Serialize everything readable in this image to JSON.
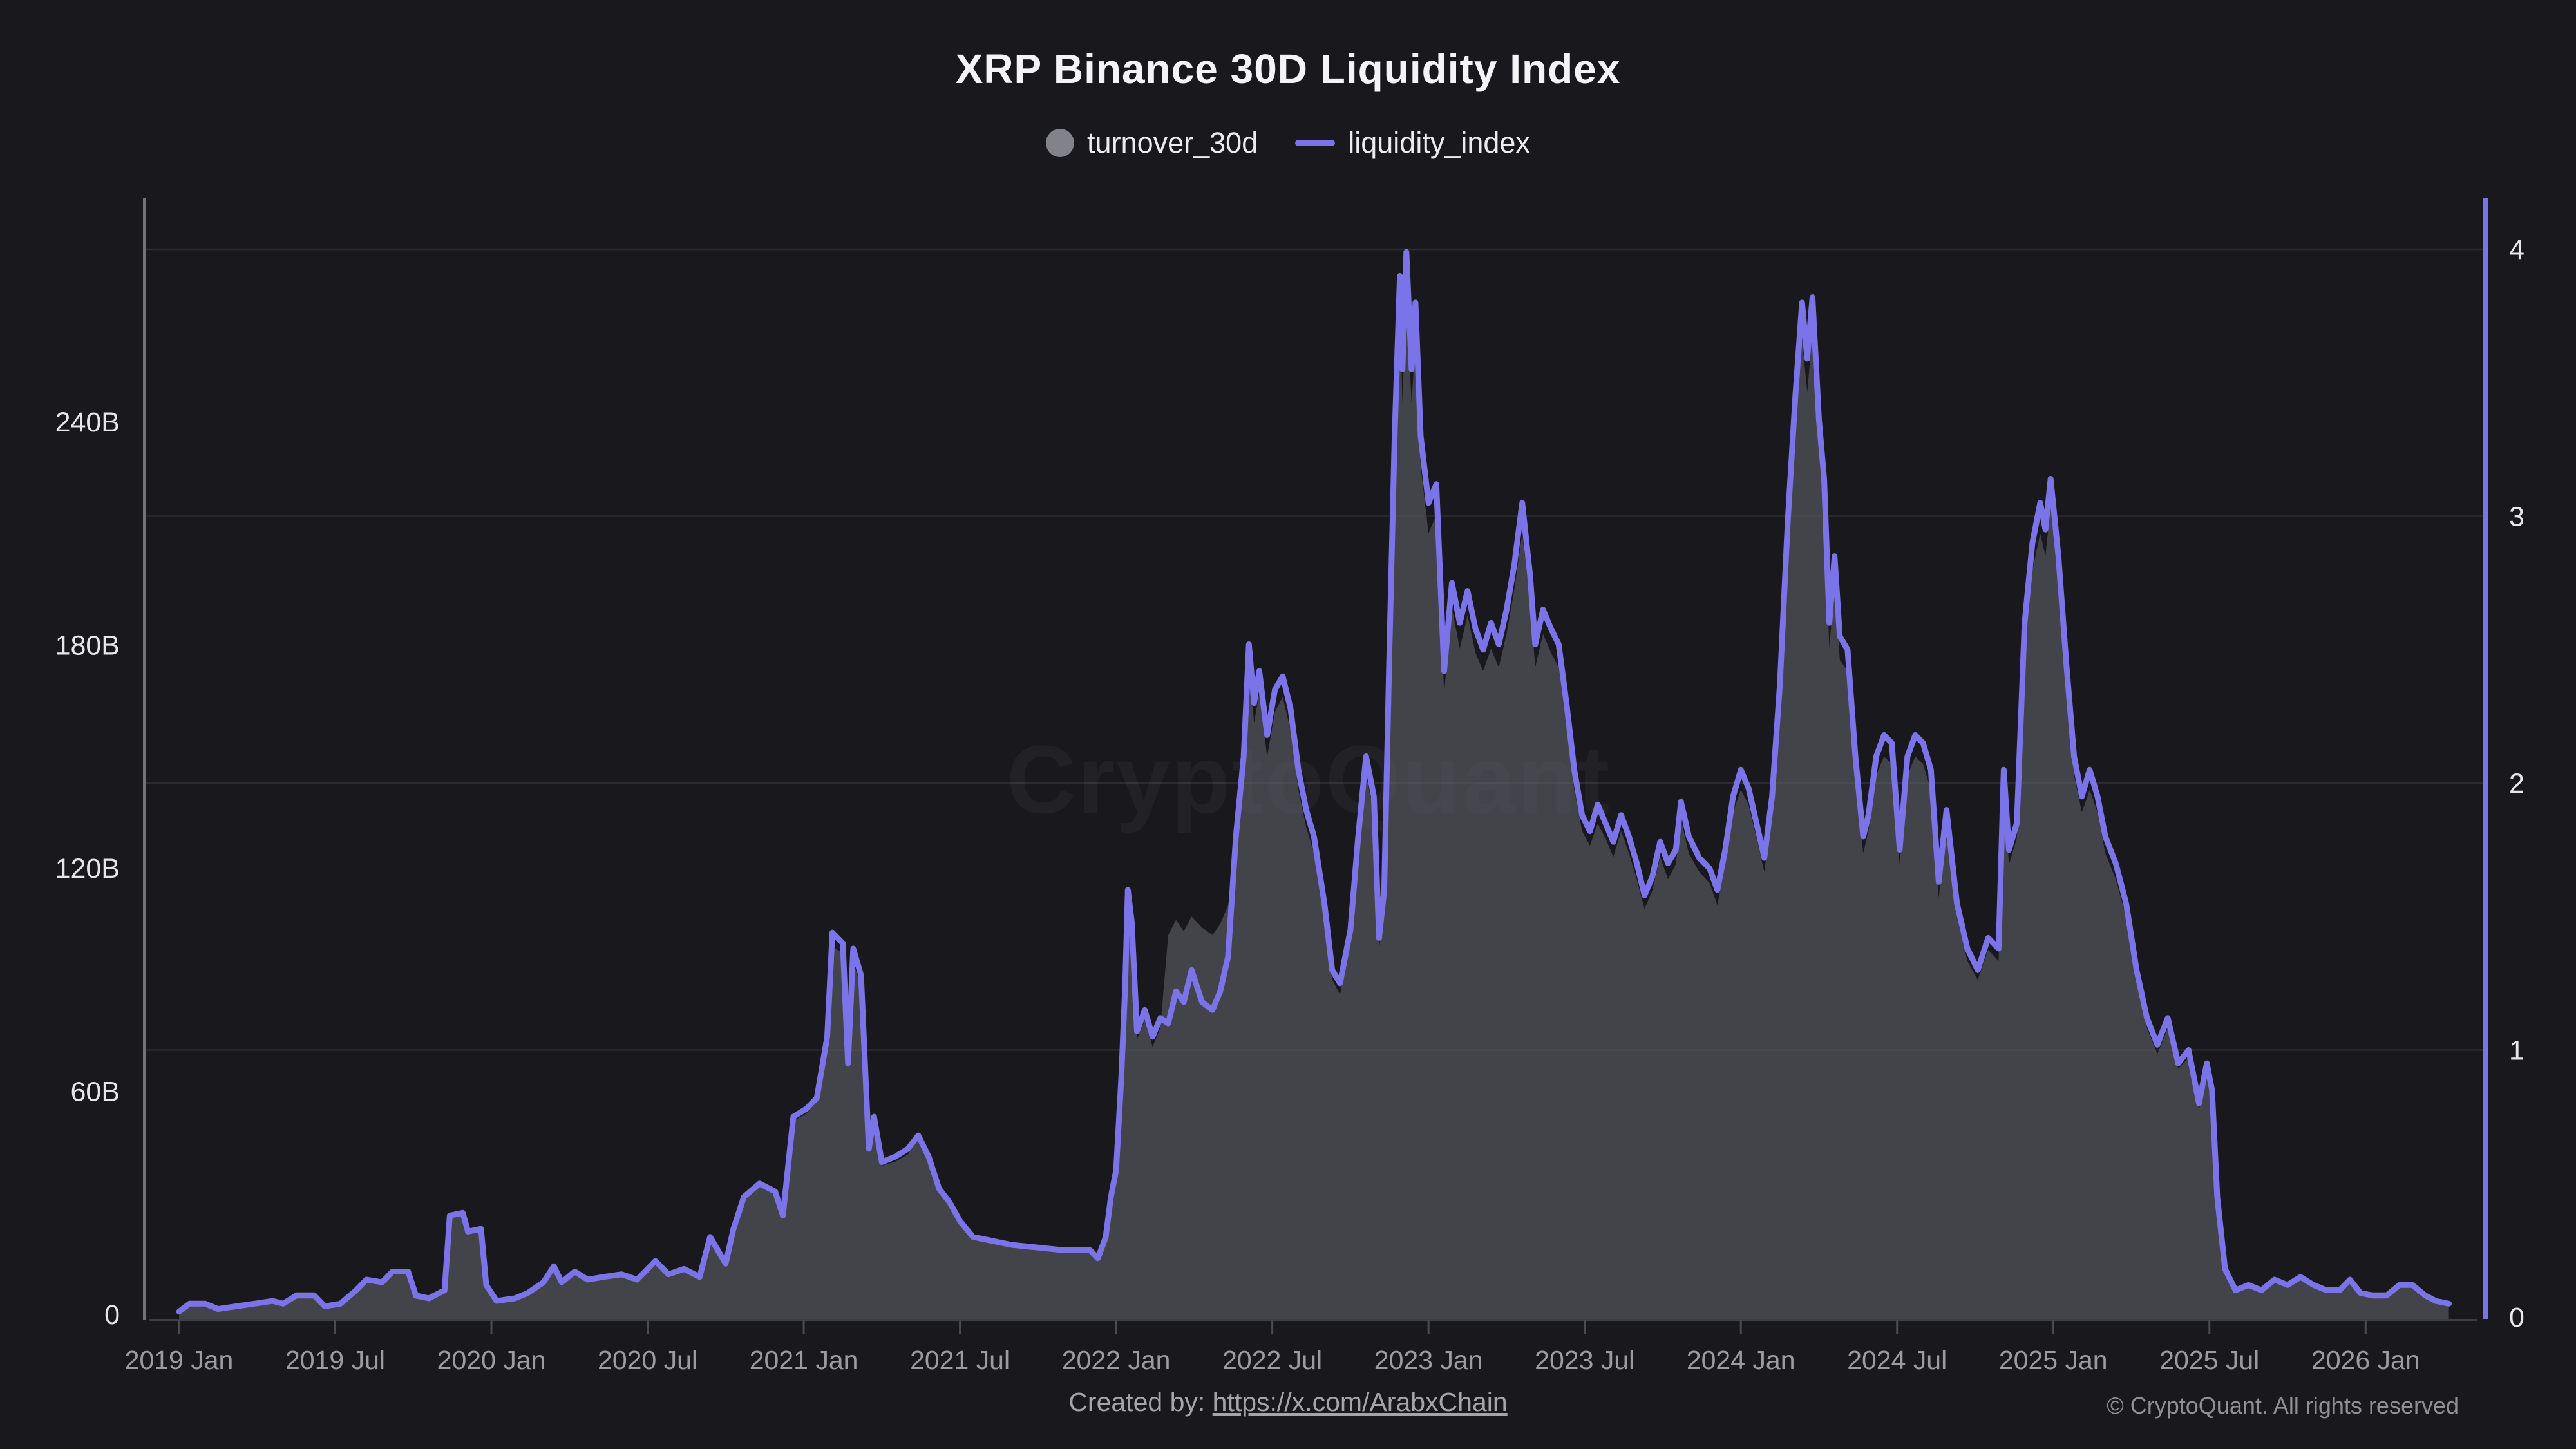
{
  "header": {
    "title": "XRP Binance 30D Liquidity Index",
    "legend": [
      {
        "label": "turnover_30d",
        "marker": "circle",
        "color": "#82828d"
      },
      {
        "label": "liquidity_index",
        "marker": "line",
        "color": "#7b74e8"
      }
    ]
  },
  "watermark": "CryptoQuant",
  "footer": {
    "created_by_prefix": "Created by: ",
    "created_by_link": "https://x.com/ArabxChain",
    "copyright": "© CryptoQuant. All rights reserved"
  },
  "colors": {
    "background": "#19191d",
    "line": "#7b74e8",
    "area_fill": "rgba(99,99,107,0.58)",
    "gridline": "#2b2b30",
    "left_axis_line": "#72727b",
    "right_axis_line": "#7b74e8",
    "baseline": "#3d3d44",
    "axis_label": "#e7e7ea",
    "x_label": "#9b9ba3"
  },
  "chart_data": {
    "type": "area",
    "title": "XRP Binance 30D Liquidity Index",
    "x_unit": "months_since_2019_01",
    "x_tick_months": [
      0,
      6,
      12,
      18,
      24,
      30,
      36,
      42,
      48,
      54,
      60,
      66,
      72,
      78,
      84
    ],
    "x_tick_labels": [
      "2019 Jan",
      "2019 Jul",
      "2020 Jan",
      "2020 Jul",
      "2021 Jan",
      "2021 Jul",
      "2022 Jan",
      "2022 Jul",
      "2023 Jan",
      "2023 Jul",
      "2024 Jan",
      "2024 Jul",
      "2025 Jan",
      "2025 Jul",
      "2026 Jan"
    ],
    "left_axis": {
      "series": "turnover_30d",
      "tick_labels": [
        "0",
        "60B",
        "120B",
        "180B",
        "240B"
      ],
      "tick_values": [
        0,
        60,
        120,
        180,
        240
      ],
      "range": [
        0,
        300
      ]
    },
    "right_axis": {
      "series": "liquidity_index",
      "tick_labels": [
        "0",
        "1",
        "2",
        "3",
        "4"
      ],
      "tick_values": [
        0,
        1,
        2,
        3,
        4
      ],
      "range": [
        0,
        4.19
      ]
    },
    "grid": "horizontal lines at right-axis integers 1-4",
    "legend_position": "top-center",
    "x": [
      0.0,
      0.4,
      1.0,
      1.5,
      2.2,
      2.9,
      3.6,
      4.0,
      4.5,
      5.2,
      5.6,
      6.2,
      6.8,
      7.2,
      7.8,
      8.2,
      8.8,
      9.1,
      9.6,
      10.2,
      10.4,
      10.9,
      11.1,
      11.6,
      11.8,
      12.2,
      12.9,
      13.4,
      14.0,
      14.4,
      14.7,
      15.2,
      15.7,
      16.3,
      17.0,
      17.6,
      18.3,
      18.8,
      19.4,
      20.0,
      20.4,
      21.0,
      21.3,
      21.7,
      22.3,
      22.9,
      23.2,
      23.6,
      24.1,
      24.5,
      24.9,
      25.1,
      25.5,
      25.7,
      25.9,
      26.2,
      26.5,
      26.7,
      27.0,
      27.5,
      28.0,
      28.4,
      28.8,
      29.2,
      29.6,
      30.0,
      30.5,
      31.0,
      32.0,
      33.0,
      34.0,
      34.6,
      35.0,
      35.3,
      35.6,
      35.8,
      36.0,
      36.2,
      36.35,
      36.45,
      36.6,
      36.8,
      37.1,
      37.4,
      37.7,
      38.0,
      38.3,
      38.6,
      38.9,
      39.3,
      39.7,
      40.0,
      40.3,
      40.6,
      40.9,
      41.1,
      41.3,
      41.5,
      41.8,
      42.1,
      42.4,
      42.7,
      43.0,
      43.3,
      43.6,
      44.0,
      44.3,
      44.6,
      45.0,
      45.3,
      45.6,
      45.9,
      46.1,
      46.3,
      46.5,
      46.7,
      46.9,
      47.0,
      47.15,
      47.35,
      47.5,
      47.7,
      48.0,
      48.3,
      48.6,
      48.9,
      49.2,
      49.5,
      49.8,
      50.1,
      50.4,
      50.7,
      51.0,
      51.3,
      51.6,
      51.9,
      52.1,
      52.4,
      52.7,
      53.0,
      53.3,
      53.6,
      53.9,
      54.2,
      54.5,
      54.8,
      55.1,
      55.4,
      55.7,
      56.0,
      56.3,
      56.6,
      56.9,
      57.2,
      57.5,
      57.7,
      58.0,
      58.4,
      58.8,
      59.1,
      59.4,
      59.7,
      60.0,
      60.3,
      60.6,
      60.9,
      61.2,
      61.5,
      61.8,
      62.1,
      62.35,
      62.55,
      62.75,
      63.0,
      63.2,
      63.4,
      63.6,
      63.8,
      64.1,
      64.4,
      64.7,
      64.9,
      65.2,
      65.5,
      65.8,
      66.1,
      66.4,
      66.7,
      67.0,
      67.3,
      67.6,
      67.9,
      68.3,
      68.7,
      69.1,
      69.5,
      69.9,
      70.1,
      70.3,
      70.6,
      70.9,
      71.2,
      71.5,
      71.7,
      71.9,
      72.2,
      72.5,
      72.8,
      73.1,
      73.4,
      73.7,
      74.0,
      74.4,
      74.8,
      75.2,
      75.6,
      76.0,
      76.4,
      76.8,
      77.2,
      77.6,
      77.9,
      78.1,
      78.3,
      78.6,
      79.0,
      79.5,
      80.0,
      80.5,
      81.0,
      81.5,
      82.0,
      82.5,
      83.0,
      83.4,
      83.8,
      84.3,
      84.8,
      85.3,
      85.8,
      86.3,
      86.7,
      87.2
    ],
    "series": [
      {
        "name": "turnover_30d",
        "type": "area",
        "axis": "left",
        "unit": "billions",
        "color": "rgba(99,99,107,0.58)",
        "values": [
          1,
          3,
          3,
          2,
          3,
          3,
          4,
          3,
          6,
          6,
          3,
          3,
          7,
          10,
          9,
          12,
          12,
          6,
          5,
          7,
          26,
          27,
          22,
          23,
          8,
          4,
          5,
          6,
          9,
          13,
          9,
          12,
          10,
          10,
          11,
          10,
          14,
          11,
          12,
          10,
          21,
          14,
          23,
          31,
          35,
          32,
          26,
          52,
          54,
          57,
          72,
          99,
          97,
          66,
          95,
          88,
          43,
          52,
          40,
          41,
          43,
          47,
          41,
          33,
          30,
          25,
          21,
          20,
          19,
          18,
          17,
          17,
          17,
          15,
          21,
          31,
          38,
          62,
          86,
          110,
          102,
          74,
          79,
          72,
          77,
          102,
          106,
          103,
          107,
          104,
          102,
          105,
          110,
          124,
          145,
          174,
          159,
          167,
          150,
          162,
          166,
          157,
          141,
          131,
          124,
          107,
          90,
          86,
          100,
          124,
          145,
          135,
          98,
          110,
          173,
          228,
          269,
          245,
          275,
          245,
          262,
          228,
          210,
          215,
          167,
          190,
          179,
          188,
          178,
          173,
          179,
          174,
          183,
          195,
          210,
          192,
          174,
          183,
          178,
          174,
          159,
          141,
          130,
          126,
          132,
          128,
          123,
          130,
          124,
          117,
          109,
          114,
          123,
          117,
          121,
          133,
          124,
          119,
          116,
          110,
          121,
          135,
          141,
          137,
          128,
          119,
          135,
          164,
          206,
          239,
          262,
          248,
          264,
          232,
          217,
          179,
          197,
          176,
          173,
          145,
          124,
          130,
          145,
          150,
          148,
          121,
          145,
          150,
          148,
          141,
          112,
          131,
          107,
          95,
          90,
          98,
          95,
          141,
          121,
          128,
          179,
          200,
          210,
          204,
          217,
          197,
          169,
          145,
          135,
          141,
          135,
          124,
          117,
          107,
          90,
          77,
          70,
          77,
          66,
          69,
          55,
          66,
          59,
          31,
          12,
          7,
          8,
          7,
          10,
          8,
          10,
          8,
          7,
          7,
          10,
          6,
          6,
          6,
          8,
          8,
          6,
          4,
          3
        ]
      },
      {
        "name": "liquidity_index",
        "type": "line",
        "axis": "right",
        "unit": "index",
        "color": "#7b74e8",
        "values": [
          0.02,
          0.05,
          0.05,
          0.03,
          0.04,
          0.05,
          0.06,
          0.05,
          0.08,
          0.08,
          0.04,
          0.05,
          0.1,
          0.14,
          0.13,
          0.17,
          0.17,
          0.08,
          0.07,
          0.1,
          0.38,
          0.39,
          0.32,
          0.33,
          0.12,
          0.06,
          0.07,
          0.09,
          0.13,
          0.19,
          0.13,
          0.17,
          0.14,
          0.15,
          0.16,
          0.14,
          0.21,
          0.16,
          0.18,
          0.15,
          0.3,
          0.2,
          0.33,
          0.45,
          0.5,
          0.47,
          0.38,
          0.75,
          0.78,
          0.82,
          1.05,
          1.44,
          1.4,
          0.95,
          1.38,
          1.28,
          0.63,
          0.75,
          0.58,
          0.6,
          0.63,
          0.68,
          0.6,
          0.48,
          0.43,
          0.36,
          0.3,
          0.29,
          0.27,
          0.26,
          0.25,
          0.25,
          0.25,
          0.22,
          0.3,
          0.45,
          0.55,
          0.9,
          1.25,
          1.6,
          1.48,
          1.07,
          1.15,
          1.05,
          1.12,
          1.1,
          1.22,
          1.18,
          1.3,
          1.18,
          1.15,
          1.22,
          1.35,
          1.8,
          2.1,
          2.52,
          2.3,
          2.42,
          2.18,
          2.35,
          2.4,
          2.28,
          2.05,
          1.9,
          1.8,
          1.55,
          1.3,
          1.25,
          1.45,
          1.8,
          2.1,
          1.95,
          1.42,
          1.6,
          2.5,
          3.3,
          3.9,
          3.55,
          3.99,
          3.55,
          3.8,
          3.3,
          3.05,
          3.12,
          2.42,
          2.75,
          2.6,
          2.72,
          2.58,
          2.5,
          2.6,
          2.52,
          2.65,
          2.82,
          3.05,
          2.78,
          2.52,
          2.65,
          2.58,
          2.52,
          2.3,
          2.05,
          1.88,
          1.82,
          1.92,
          1.85,
          1.78,
          1.88,
          1.8,
          1.7,
          1.58,
          1.65,
          1.78,
          1.7,
          1.75,
          1.93,
          1.8,
          1.72,
          1.68,
          1.6,
          1.75,
          1.95,
          2.05,
          1.98,
          1.85,
          1.72,
          1.95,
          2.37,
          2.98,
          3.46,
          3.8,
          3.59,
          3.82,
          3.36,
          3.14,
          2.6,
          2.85,
          2.55,
          2.5,
          2.1,
          1.8,
          1.88,
          2.1,
          2.18,
          2.15,
          1.75,
          2.1,
          2.18,
          2.15,
          2.05,
          1.63,
          1.9,
          1.55,
          1.38,
          1.3,
          1.42,
          1.38,
          2.05,
          1.75,
          1.85,
          2.6,
          2.9,
          3.05,
          2.95,
          3.14,
          2.85,
          2.45,
          2.1,
          1.95,
          2.05,
          1.95,
          1.8,
          1.7,
          1.55,
          1.3,
          1.12,
          1.02,
          1.12,
          0.95,
          1.0,
          0.8,
          0.95,
          0.85,
          0.45,
          0.18,
          0.1,
          0.12,
          0.1,
          0.14,
          0.12,
          0.15,
          0.12,
          0.1,
          0.1,
          0.14,
          0.09,
          0.08,
          0.08,
          0.12,
          0.12,
          0.08,
          0.06,
          0.05
        ]
      }
    ]
  }
}
